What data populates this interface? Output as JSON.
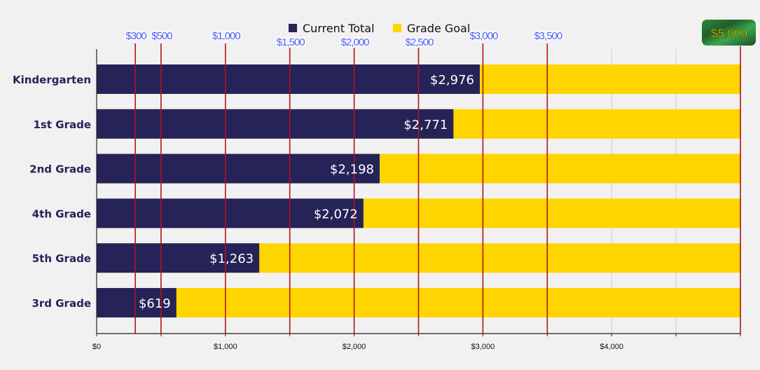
{
  "chart_data": {
    "type": "bar",
    "orientation": "horizontal",
    "stacked": false,
    "title": "",
    "categories": [
      "Kindergarten",
      "1st Grade",
      "2nd Grade",
      "4th Grade",
      "5th Grade",
      "3rd Grade"
    ],
    "series": [
      {
        "name": "Grade Goal",
        "color": "#ffd500",
        "values": [
          5000,
          5000,
          5000,
          5000,
          5000,
          5000
        ]
      },
      {
        "name": "Current Total",
        "color": "#252358",
        "values": [
          2976,
          2771,
          2198,
          2072,
          1263,
          619
        ]
      }
    ],
    "value_labels": [
      "$2,976",
      "$2,771",
      "$2,198",
      "$2,072",
      "$1,263",
      "$619"
    ],
    "legend": {
      "position": "top-center",
      "entries": [
        {
          "label": "Current Total",
          "color": "#252358"
        },
        {
          "label": "Grade Goal",
          "color": "#ffd500"
        }
      ]
    },
    "xaxis": {
      "min": 0,
      "max": 5000,
      "ticks": [
        0,
        500,
        1000,
        1500,
        2000,
        2500,
        3000,
        3500,
        4000,
        4500,
        5000
      ],
      "tick_labels": [
        {
          "value": 0,
          "label": "$0"
        },
        {
          "value": 1000,
          "label": "$1,000"
        },
        {
          "value": 2000,
          "label": "$2,000"
        },
        {
          "value": 3000,
          "label": "$3,000"
        },
        {
          "value": 4000,
          "label": "$4,000"
        }
      ],
      "gridlines": [
        4000,
        4500
      ]
    },
    "milestones": [
      {
        "value": 300,
        "label": "$300",
        "row": 0
      },
      {
        "value": 500,
        "label": "$500",
        "row": 0
      },
      {
        "value": 1000,
        "label": "$1,000",
        "row": 0
      },
      {
        "value": 1500,
        "label": "$1,500",
        "row": 1
      },
      {
        "value": 2000,
        "label": "$2,000",
        "row": 1
      },
      {
        "value": 2500,
        "label": "$2,500",
        "row": 1
      },
      {
        "value": 3000,
        "label": "$3,000",
        "row": 0
      },
      {
        "value": 3500,
        "label": "$3,500",
        "row": 0
      },
      {
        "value": 5000,
        "label": "$5,000",
        "row": 0,
        "final": true
      }
    ],
    "milestone_line_color": "#b0141c",
    "grid": true
  }
}
